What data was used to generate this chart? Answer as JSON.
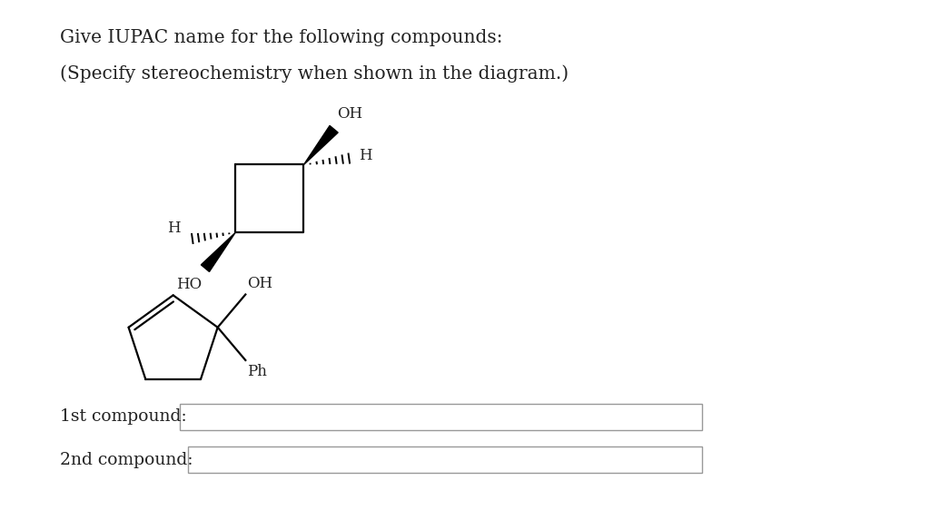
{
  "title_line1": "Give IUPAC name for the following compounds:",
  "title_line2": "(Specify stereochemistry when shown in the diagram.)",
  "label_1st": "1st compound:",
  "label_2nd": "2nd compound:",
  "bg_color": "#ffffff",
  "text_color": "#222222",
  "font_size_title": 14.5,
  "font_size_label": 13.5,
  "font_size_chem": 12
}
